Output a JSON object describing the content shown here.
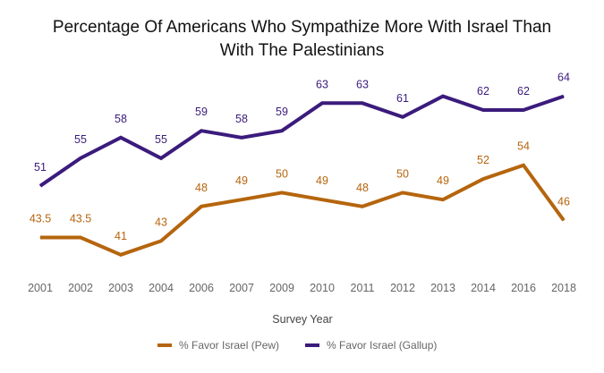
{
  "chart_data": {
    "type": "line",
    "title": "Percentage Of Americans Who Sympathize More With Israel Than\nWith The Palestinians",
    "xlabel": "Survey Year",
    "ylabel": "",
    "categories": [
      "2001",
      "2002",
      "2003",
      "2004",
      "2006",
      "2007",
      "2009",
      "2010",
      "2011",
      "2012",
      "2013",
      "2014",
      "2016",
      "2018"
    ],
    "series": [
      {
        "name": "% Favor Israel (Pew)",
        "color": "#b5650d",
        "values": [
          43.5,
          43.5,
          41,
          43,
          48,
          49,
          50,
          49,
          48,
          50,
          49,
          52,
          54,
          46
        ],
        "labels": [
          "43.5",
          "43.5",
          "41",
          "43",
          "48",
          "49",
          "50",
          "49",
          "48",
          "50",
          "49",
          "52",
          "54",
          "46"
        ]
      },
      {
        "name": "% Favor Israel (Gallup)",
        "color": "#3b1b7c",
        "values": [
          51,
          55,
          58,
          55,
          59,
          58,
          59,
          63,
          63,
          61,
          64,
          62,
          62,
          64
        ],
        "labels": [
          "51",
          "55",
          "58",
          "55",
          "59",
          "58",
          "59",
          "63",
          "63",
          "61",
          "",
          "62",
          "62",
          "64"
        ]
      }
    ],
    "grid": false,
    "legend_position": "bottom"
  }
}
